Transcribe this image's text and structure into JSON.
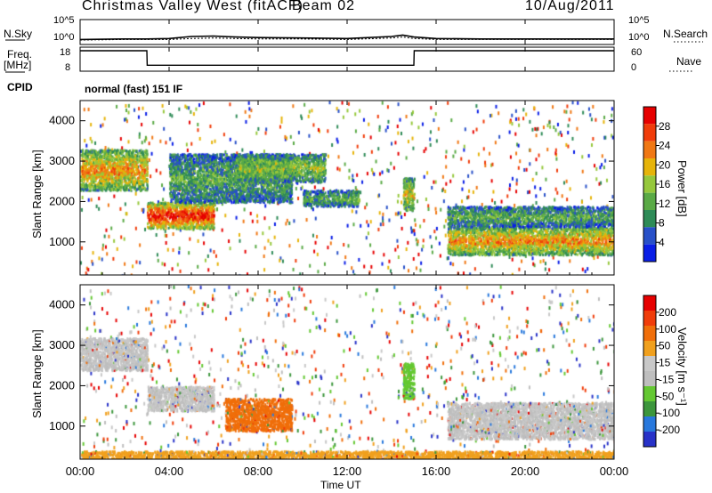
{
  "header": {
    "station": "Christmas Valley West (fitACF)",
    "beam": "Beam 02",
    "date": "10/Aug/2011"
  },
  "top_panels": {
    "nsky_label": "N.Sky",
    "nsearch_label": "N.Search",
    "nsky_ticks": [
      "10^5",
      "10^0"
    ],
    "nsearch_ticks": [
      "10^5",
      "10^0"
    ],
    "freq_label_1": "Freq.",
    "freq_label_2": "[MHz]",
    "freq_ticks": [
      "18",
      "8"
    ],
    "nave_label": "Nave",
    "nave_ticks": [
      "60",
      "0"
    ],
    "cpid_label": "CPID",
    "cpid_value": "normal (fast) 151 IF"
  },
  "colors": {
    "power_scale": [
      "#0a1ee6",
      "#2850c8",
      "#2e8b57",
      "#5aaa46",
      "#96c83c",
      "#e6b40a",
      "#f07814",
      "#f03c0a",
      "#e60000"
    ],
    "velocity_scale": [
      "#2832c8",
      "#2878dc",
      "#3c963c",
      "#64c832",
      "#bebebe",
      "#c8c8c8",
      "#f0a01e",
      "#f06e0a",
      "#f03c0a",
      "#e60000"
    ]
  },
  "chart_data": [
    {
      "type": "line",
      "title": "N.Sky / N.Search",
      "x": [
        "00:00",
        "02:00",
        "03:00",
        "04:00",
        "05:00",
        "06:00",
        "07:00",
        "08:00",
        "10:00",
        "12:00",
        "14:00",
        "14:30",
        "15:00",
        "16:00",
        "18:00",
        "20:00",
        "22:00",
        "24:00"
      ],
      "series": [
        {
          "name": "N.Sky",
          "values": [
            1.0,
            1.1,
            1.1,
            1.2,
            1.6,
            1.7,
            1.5,
            1.4,
            1.3,
            1.2,
            1.6,
            1.9,
            1.5,
            1.2,
            1.1,
            1.1,
            1.1,
            1.1
          ]
        },
        {
          "name": "N.Search",
          "values": [
            0.9,
            1.0,
            1.0,
            1.0,
            1.2,
            1.3,
            1.2,
            1.1,
            1.1,
            1.0,
            1.3,
            1.5,
            1.2,
            1.0,
            1.0,
            1.0,
            1.0,
            1.0
          ]
        }
      ],
      "ylim": [
        0,
        5
      ]
    },
    {
      "type": "line",
      "title": "Freq / Nave",
      "x": [
        "00:00",
        "03:00",
        "03:01",
        "15:00",
        "15:01",
        "24:00"
      ],
      "series": [
        {
          "name": "Freq.",
          "values": [
            16.5,
            16.5,
            10.5,
            10.5,
            16.5,
            16.5
          ]
        },
        {
          "name": "Nave",
          "values": [
            18,
            18,
            18,
            18,
            18,
            18
          ]
        }
      ],
      "ylim": [
        8,
        18
      ]
    },
    {
      "type": "heatmap",
      "title": "Power",
      "xlabel": "",
      "ylabel": "Slant Range [km]",
      "xlim": [
        0,
        24
      ],
      "ylim": [
        180,
        4500
      ],
      "y_ticks": [
        "1000",
        "2000",
        "3000",
        "4000"
      ],
      "colorbar_label": "Power [dB]",
      "colorbar_ticks": [
        "28",
        "24",
        "20",
        "16",
        "12",
        "8",
        "4"
      ],
      "regions": [
        {
          "t0": 0.0,
          "t1": 3.0,
          "r0": 2300,
          "r1": 3300,
          "level": 22
        },
        {
          "t0": 3.0,
          "t1": 6.0,
          "r0": 1350,
          "r1": 2000,
          "level": 27
        },
        {
          "t0": 4.0,
          "t1": 9.5,
          "r0": 2000,
          "r1": 3200,
          "level": 12
        },
        {
          "t0": 7.0,
          "t1": 11.0,
          "r0": 2500,
          "r1": 3200,
          "level": 14
        },
        {
          "t0": 10.0,
          "t1": 12.5,
          "r0": 1900,
          "r1": 2300,
          "level": 10
        },
        {
          "t0": 14.5,
          "t1": 15.0,
          "r0": 1800,
          "r1": 2600,
          "level": 18
        },
        {
          "t0": 16.5,
          "t1": 24.0,
          "r0": 700,
          "r1": 1400,
          "level": 22
        },
        {
          "t0": 16.5,
          "t1": 24.0,
          "r0": 1400,
          "r1": 1900,
          "level": 10
        }
      ]
    },
    {
      "type": "heatmap",
      "title": "Velocity",
      "xlabel": "Time UT",
      "ylabel": "Slant Range [km]",
      "xlim": [
        0,
        24
      ],
      "ylim": [
        180,
        4500
      ],
      "x_ticks": [
        "00:00",
        "04:00",
        "08:00",
        "12:00",
        "16:00",
        "20:00",
        "00:00"
      ],
      "y_ticks": [
        "1000",
        "2000",
        "3000",
        "4000"
      ],
      "colorbar_label": "Velocity [m s⁻¹]",
      "colorbar_ticks": [
        "200",
        "100",
        "50",
        "15",
        "-15",
        "-50",
        "-100",
        "-200"
      ],
      "regions": [
        {
          "t0": 0.0,
          "t1": 3.0,
          "r0": 2400,
          "r1": 3200,
          "level": 0
        },
        {
          "t0": 3.0,
          "t1": 6.0,
          "r0": 1400,
          "r1": 2000,
          "level": 0
        },
        {
          "t0": 6.5,
          "t1": 9.5,
          "r0": 900,
          "r1": 1700,
          "level": -80
        },
        {
          "t0": 14.5,
          "t1": 15.0,
          "r0": 1700,
          "r1": 2600,
          "level": 40
        },
        {
          "t0": 16.5,
          "t1": 24.0,
          "r0": 700,
          "r1": 1600,
          "level": 0
        },
        {
          "t0": 0.0,
          "t1": 24.0,
          "r0": 180,
          "r1": 400,
          "level": -60
        }
      ]
    }
  ]
}
